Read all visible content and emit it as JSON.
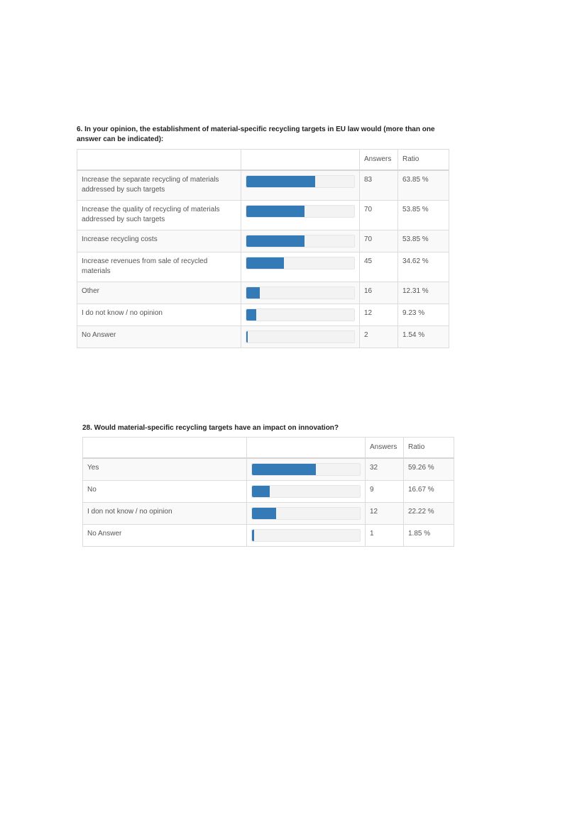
{
  "sections": [
    {
      "title": "6. In your opinion, the establishment of material-specific recycling targets in EU law would (more than one answer can be indicated):",
      "headers": {
        "answers": "Answers",
        "ratio": "Ratio"
      },
      "rows": [
        {
          "label": "Increase the separate recycling of materials addressed by such targets",
          "answers": "83",
          "ratio": "63.85 %",
          "ratio_value": 63.85
        },
        {
          "label": "Increase the quality of recycling of materials addressed by such targets",
          "answers": "70",
          "ratio": "53.85 %",
          "ratio_value": 53.85
        },
        {
          "label": "Increase recycling costs",
          "answers": "70",
          "ratio": "53.85 %",
          "ratio_value": 53.85
        },
        {
          "label": "Increase revenues from sale of recycled materials",
          "answers": "45",
          "ratio": "34.62 %",
          "ratio_value": 34.62
        },
        {
          "label": "Other",
          "answers": "16",
          "ratio": "12.31 %",
          "ratio_value": 12.31
        },
        {
          "label": "I do not know / no opinion",
          "answers": "12",
          "ratio": "9.23 %",
          "ratio_value": 9.23
        },
        {
          "label": "No Answer",
          "answers": "2",
          "ratio": "1.54 %",
          "ratio_value": 1.54
        }
      ],
      "bar_color": "#337ab7"
    },
    {
      "title": "28. Would material-specific recycling targets have an impact on innovation?",
      "headers": {
        "answers": "Answers",
        "ratio": "Ratio"
      },
      "rows": [
        {
          "label": "Yes",
          "answers": "32",
          "ratio": "59.26 %",
          "ratio_value": 59.26
        },
        {
          "label": "No",
          "answers": "9",
          "ratio": "16.67 %",
          "ratio_value": 16.67
        },
        {
          "label": "I don not know / no opinion",
          "answers": "12",
          "ratio": "22.22 %",
          "ratio_value": 22.22
        },
        {
          "label": "No Answer",
          "answers": "1",
          "ratio": "1.85 %",
          "ratio_value": 1.85
        }
      ],
      "bar_color": "#337ab7"
    }
  ]
}
